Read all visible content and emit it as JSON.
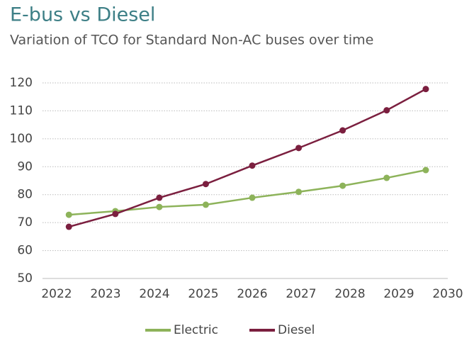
{
  "chart_data": {
    "type": "line",
    "title": "E-bus vs Diesel",
    "subtitle": "Variation of TCO for Standard Non-AC buses over time",
    "xlim": [
      2022,
      2030
    ],
    "xticks": [
      2022,
      2023,
      2024,
      2025,
      2026,
      2027,
      2028,
      2029,
      2030
    ],
    "ylim": [
      50,
      120
    ],
    "yticks": [
      50,
      60,
      70,
      80,
      90,
      100,
      110,
      120
    ],
    "grid": true,
    "legend": "bottom",
    "series": [
      {
        "name": "Electric",
        "color": "#8db35a",
        "x": [
          2022.25,
          2023.2,
          2024.1,
          2025.05,
          2026.0,
          2026.95,
          2027.85,
          2028.75,
          2029.55
        ],
        "values": [
          72.8,
          74.1,
          75.6,
          76.4,
          78.9,
          81.0,
          83.2,
          86.0,
          88.8
        ]
      },
      {
        "name": "Diesel",
        "color": "#7b1f3f",
        "x": [
          2022.25,
          2023.2,
          2024.1,
          2025.05,
          2026.0,
          2026.95,
          2027.85,
          2028.75,
          2029.55
        ],
        "values": [
          68.5,
          73.1,
          78.9,
          83.8,
          90.4,
          96.7,
          103.0,
          110.2,
          117.8
        ]
      }
    ]
  }
}
